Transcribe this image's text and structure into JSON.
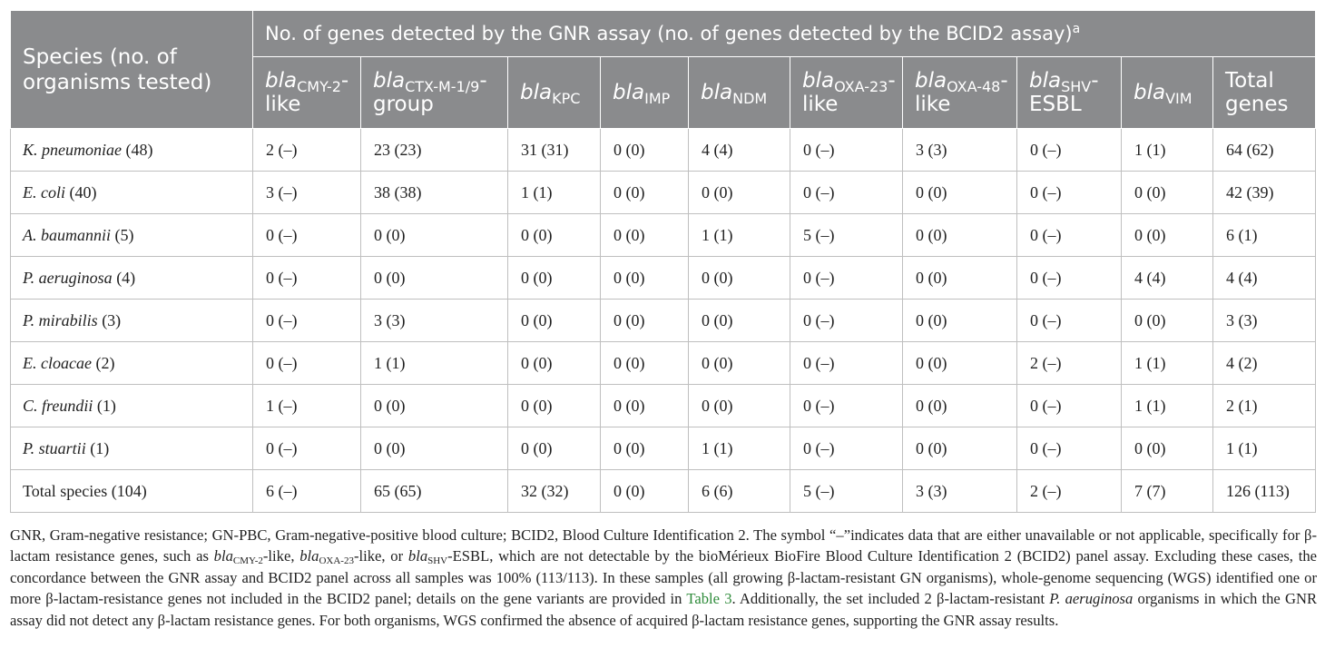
{
  "table": {
    "species_header": "Species (no. of organisms tested)",
    "group_header": "No. of genes detected by the GNR assay (no. of genes detected by the BCID2 assay)",
    "group_header_sup": "a",
    "gene_prefix": "bla",
    "columns": [
      {
        "sub": "CMY-2",
        "suffix": "-like"
      },
      {
        "sub": "CTX-M-1/9",
        "suffix": "-group"
      },
      {
        "sub": "KPC",
        "suffix": ""
      },
      {
        "sub": "IMP",
        "suffix": ""
      },
      {
        "sub": "NDM",
        "suffix": ""
      },
      {
        "sub": "OXA-23",
        "suffix": "-like"
      },
      {
        "sub": "OXA-48",
        "suffix": "-like"
      },
      {
        "sub": "SHV",
        "suffix": "-ESBL"
      },
      {
        "sub": "VIM",
        "suffix": ""
      }
    ],
    "total_genes_label": "Total genes",
    "rows": [
      {
        "species": "K. pneumoniae",
        "count": "(48)",
        "values": [
          "2 (–)",
          "23 (23)",
          "31 (31)",
          "0 (0)",
          "4 (4)",
          "0 (–)",
          "3 (3)",
          "0 (–)",
          "1 (1)",
          "64 (62)"
        ]
      },
      {
        "species": "E. coli",
        "count": "(40)",
        "values": [
          "3 (–)",
          "38 (38)",
          "1 (1)",
          "0 (0)",
          "0 (0)",
          "0 (–)",
          "0 (0)",
          "0 (–)",
          "0 (0)",
          "42 (39)"
        ]
      },
      {
        "species": "A. baumannii",
        "count": "(5)",
        "values": [
          "0 (–)",
          "0 (0)",
          "0 (0)",
          "0 (0)",
          "1 (1)",
          "5 (–)",
          "0 (0)",
          "0 (–)",
          "0 (0)",
          "6 (1)"
        ]
      },
      {
        "species": "P. aeruginosa",
        "count": "(4)",
        "values": [
          "0 (–)",
          "0 (0)",
          "0 (0)",
          "0 (0)",
          "0 (0)",
          "0 (–)",
          "0 (0)",
          "0 (–)",
          "4 (4)",
          "4 (4)"
        ]
      },
      {
        "species": "P. mirabilis",
        "count": "(3)",
        "values": [
          "0 (–)",
          "3 (3)",
          "0 (0)",
          "0 (0)",
          "0 (0)",
          "0 (–)",
          "0 (0)",
          "0 (–)",
          "0 (0)",
          "3 (3)"
        ]
      },
      {
        "species": "E. cloacae",
        "count": "(2)",
        "values": [
          "0 (–)",
          "1 (1)",
          "0 (0)",
          "0 (0)",
          "0 (0)",
          "0 (–)",
          "0 (0)",
          "2 (–)",
          "1 (1)",
          "4 (2)"
        ]
      },
      {
        "species": "C. freundii",
        "count": "(1)",
        "values": [
          "1 (–)",
          "0 (0)",
          "0 (0)",
          "0 (0)",
          "0 (0)",
          "0 (–)",
          "0 (0)",
          "0 (–)",
          "1 (1)",
          "2 (1)"
        ]
      },
      {
        "species": "P. stuartii",
        "count": "(1)",
        "values": [
          "0 (–)",
          "0 (0)",
          "0 (0)",
          "0 (0)",
          "1 (1)",
          "0 (–)",
          "0 (0)",
          "0 (–)",
          "0 (0)",
          "1 (1)"
        ]
      },
      {
        "species": "",
        "count": "Total species (104)",
        "values": [
          "6 (–)",
          "65 (65)",
          "32 (32)",
          "0 (0)",
          "6 (6)",
          "5 (–)",
          "3 (3)",
          "2 (–)",
          "7 (7)",
          "126 (113)"
        ]
      }
    ]
  },
  "footnote": {
    "p1": "GNR, Gram-negative resistance; GN-PBC, Gram-negative-positive blood culture; BCID2, Blood Culture Identification 2. The symbol “–”indicates data that are either unavailable or not applicable, specifically for β-lactam resistance genes, such as ",
    "g1_prefix": "bla",
    "g1_sub": "CMY-2",
    "g1_suffix": "-like, ",
    "g2_prefix": "bla",
    "g2_sub": "OXA-23",
    "g2_suffix": "-like, or ",
    "g3_prefix": "bla",
    "g3_sub": "SHV",
    "g3_suffix": "-ESBL, which are not detectable by the bioMérieux BioFire Blood Culture Identification 2 (BCID2) panel assay. Excluding these cases, the concordance between the GNR assay and BCID2 panel across all samples was 100% (113/113). In these samples (all growing β-lactam-resistant GN organisms), whole-genome sequencing (WGS) identified one or more β-lactam-resistance genes not included in the BCID2 panel; details on the gene variants are provided in ",
    "link": "Table 3",
    "p2": ". Additionally, the set included 2 β-lactam-resistant ",
    "organism": "P. aeruginosa",
    "p3": " organisms in which the GNR assay did not detect any β-lactam resistance genes. For both organisms, WGS confirmed the absence of acquired β-lactam resistance genes, supporting the GNR assay results."
  }
}
